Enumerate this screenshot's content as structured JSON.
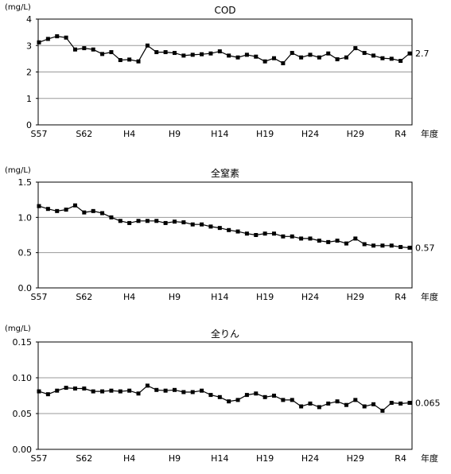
{
  "chart_data": [
    {
      "type": "line",
      "title": "COD",
      "unit_label": "(mg/L)",
      "x_unit_label": "年度",
      "ylim": [
        0,
        4
      ],
      "yticks": [
        "0",
        "1",
        "2",
        "3",
        "4"
      ],
      "ytick_values": [
        0,
        1,
        2,
        3,
        4
      ],
      "xtick_labels": [
        "S57",
        "S62",
        "H4",
        "H9",
        "H14",
        "H19",
        "H24",
        "H29",
        "R4"
      ],
      "grid": true,
      "end_label": "2.7",
      "series": [
        {
          "values": [
            3.12,
            3.25,
            3.35,
            3.3,
            2.85,
            2.9,
            2.85,
            2.68,
            2.75,
            2.45,
            2.47,
            2.4,
            3.0,
            2.75,
            2.75,
            2.72,
            2.62,
            2.65,
            2.67,
            2.7,
            2.78,
            2.62,
            2.55,
            2.65,
            2.58,
            2.4,
            2.52,
            2.33,
            2.72,
            2.55,
            2.65,
            2.55,
            2.7,
            2.48,
            2.55,
            2.9,
            2.72,
            2.62,
            2.52,
            2.5,
            2.42,
            2.7
          ]
        }
      ]
    },
    {
      "type": "line",
      "title": "全窒素",
      "unit_label": "(mg/L)",
      "x_unit_label": "年度",
      "ylim": [
        0,
        1.5
      ],
      "yticks": [
        "0.0",
        "0.5",
        "1.0",
        "1.5"
      ],
      "ytick_values": [
        0,
        0.5,
        1.0,
        1.5
      ],
      "xtick_labels": [
        "S57",
        "S62",
        "H4",
        "H9",
        "H14",
        "H19",
        "H24",
        "H29",
        "R4"
      ],
      "grid": true,
      "end_label": "0.57",
      "series": [
        {
          "values": [
            1.16,
            1.12,
            1.09,
            1.11,
            1.17,
            1.07,
            1.09,
            1.06,
            1.0,
            0.95,
            0.92,
            0.95,
            0.95,
            0.95,
            0.92,
            0.94,
            0.93,
            0.9,
            0.9,
            0.87,
            0.85,
            0.82,
            0.8,
            0.77,
            0.75,
            0.77,
            0.77,
            0.73,
            0.73,
            0.7,
            0.7,
            0.67,
            0.65,
            0.67,
            0.63,
            0.7,
            0.62,
            0.6,
            0.6,
            0.6,
            0.58,
            0.57
          ]
        }
      ]
    },
    {
      "type": "line",
      "title": "全りん",
      "unit_label": "(mg/L)",
      "x_unit_label": "年度",
      "ylim": [
        0,
        0.15
      ],
      "yticks": [
        "0.00",
        "0.05",
        "0.10",
        "0.15"
      ],
      "ytick_values": [
        0,
        0.05,
        0.1,
        0.15
      ],
      "xtick_labels": [
        "S57",
        "S62",
        "H4",
        "H9",
        "H14",
        "H19",
        "H24",
        "H29",
        "R4"
      ],
      "grid": true,
      "end_label": "0.065",
      "series": [
        {
          "values": [
            0.081,
            0.077,
            0.082,
            0.086,
            0.085,
            0.085,
            0.081,
            0.081,
            0.082,
            0.081,
            0.082,
            0.078,
            0.089,
            0.083,
            0.082,
            0.083,
            0.08,
            0.08,
            0.082,
            0.076,
            0.073,
            0.067,
            0.069,
            0.076,
            0.078,
            0.073,
            0.075,
            0.069,
            0.069,
            0.06,
            0.064,
            0.059,
            0.064,
            0.067,
            0.062,
            0.069,
            0.06,
            0.063,
            0.054,
            0.065,
            0.064,
            0.065
          ]
        }
      ]
    }
  ]
}
